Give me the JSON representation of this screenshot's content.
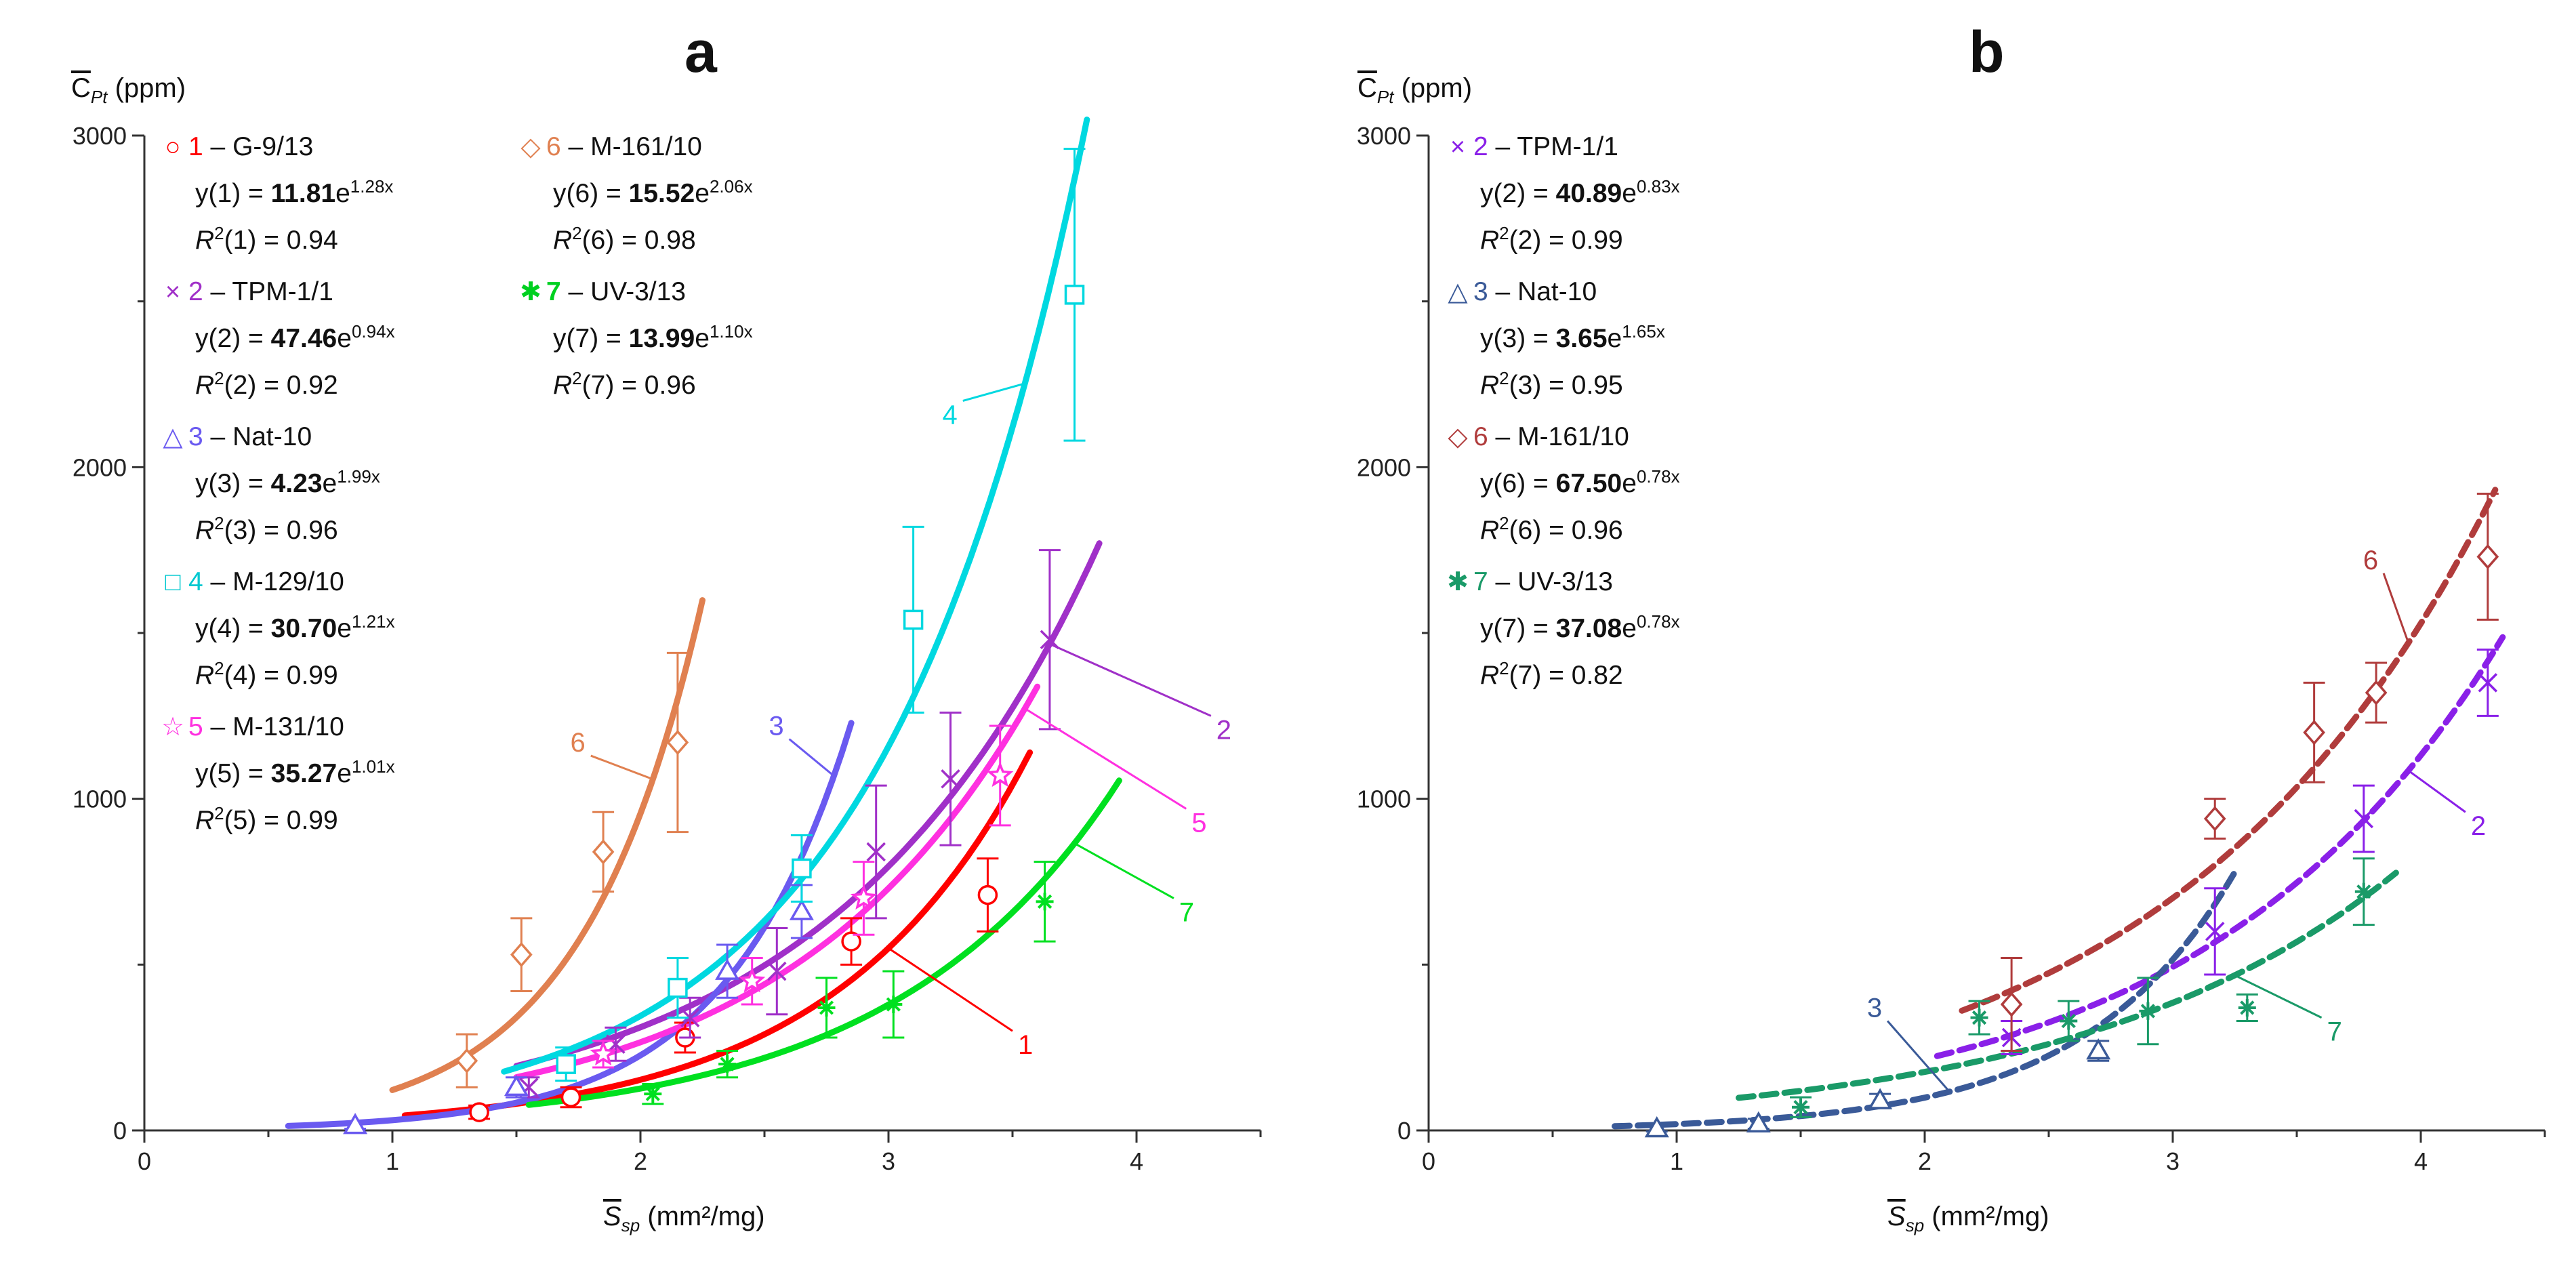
{
  "chart_data": [
    {
      "panel": "a",
      "type": "scatter",
      "title": "a",
      "ylabel": {
        "symbol": "C",
        "sub": "Pt",
        "unit": "(ppm)"
      },
      "xlabel": {
        "symbol": "S",
        "sub": "sp",
        "unit": "(mm²/mg)"
      },
      "xlim": [
        0,
        4.5
      ],
      "ylim": [
        0,
        3000
      ],
      "xticks": [
        "0",
        "1",
        "2",
        "3",
        "4"
      ],
      "yticks": [
        "0",
        "1000",
        "2000",
        "3000"
      ],
      "series": [
        {
          "id": "1",
          "label": "G-9/13",
          "color": "#ff0000",
          "marker": "circle",
          "coef": "11.81",
          "exp": "1.28",
          "a": 11.81,
          "b": 1.28,
          "r2": "0.94",
          "xrange": [
            1.05,
            3.57
          ],
          "points": [
            [
              1.35,
              55,
              20
            ],
            [
              1.72,
              100,
              30
            ],
            [
              2.18,
              280,
              45
            ],
            [
              2.85,
              570,
              70
            ],
            [
              3.4,
              710,
              110
            ]
          ]
        },
        {
          "id": "2",
          "label": "TPM-1/1",
          "color": "#a030c8",
          "marker": "cross",
          "coef": "47.46",
          "exp": "0.94",
          "a": 47.46,
          "b": 0.94,
          "r2": "0.92",
          "xrange": [
            1.5,
            3.85
          ],
          "points": [
            [
              1.55,
              130,
              30
            ],
            [
              1.9,
              260,
              50
            ],
            [
              2.2,
              340,
              60
            ],
            [
              2.55,
              480,
              130
            ],
            [
              2.95,
              840,
              200
            ],
            [
              3.25,
              1060,
              200
            ],
            [
              3.65,
              1480,
              270
            ]
          ]
        },
        {
          "id": "3",
          "label": "Nat-10",
          "color": "#6a5af0",
          "marker": "triangle",
          "coef": "4.23",
          "exp": "1.99",
          "a": 4.23,
          "b": 1.99,
          "r2": "0.96",
          "xrange": [
            0.58,
            2.85
          ],
          "points": [
            [
              0.85,
              15,
              10
            ],
            [
              1.5,
              130,
              30
            ],
            [
              2.35,
              480,
              80
            ],
            [
              2.65,
              660,
              80
            ]
          ]
        },
        {
          "id": "4",
          "label": "M-129/10",
          "color": "#00d8e0",
          "marker": "square",
          "coef": "30.70",
          "exp": "1.21",
          "a": 30.7,
          "b": 1.21,
          "r2": "0.99",
          "xrange": [
            1.45,
            3.8
          ],
          "points": [
            [
              1.7,
              200,
              50
            ],
            [
              2.15,
              430,
              90
            ],
            [
              2.65,
              790,
              100
            ],
            [
              3.1,
              1540,
              280
            ],
            [
              3.75,
              2520,
              440
            ]
          ]
        },
        {
          "id": "5",
          "label": "M-131/10",
          "color": "#ff30e0",
          "marker": "star",
          "coef": "35.27",
          "exp": "1.01",
          "a": 35.27,
          "b": 1.01,
          "r2": "0.99",
          "xrange": [
            1.5,
            3.6
          ],
          "points": [
            [
              1.85,
              230,
              40
            ],
            [
              2.45,
              450,
              70
            ],
            [
              2.9,
              700,
              110
            ],
            [
              3.45,
              1070,
              150
            ]
          ]
        },
        {
          "id": "6",
          "label": "M-161/10",
          "color": "#e08050",
          "marker": "diamond",
          "coef": "15.52",
          "exp": "2.06",
          "a": 15.52,
          "b": 2.06,
          "r2": "0.98",
          "xrange": [
            1.0,
            2.25
          ],
          "points": [
            [
              1.3,
              210,
              80
            ],
            [
              1.52,
              530,
              110
            ],
            [
              1.85,
              840,
              120
            ],
            [
              2.15,
              1170,
              270
            ]
          ]
        },
        {
          "id": "7",
          "label": "UV-3/13",
          "color": "#00e020",
          "marker": "asterisk",
          "coef": "13.99",
          "exp": "1.10",
          "a": 13.99,
          "b": 1.1,
          "r2": "0.96",
          "xrange": [
            1.55,
            3.93
          ],
          "points": [
            [
              2.05,
              110,
              30
            ],
            [
              2.35,
              200,
              40
            ],
            [
              2.75,
              370,
              90
            ],
            [
              3.02,
              380,
              100
            ],
            [
              3.63,
              690,
              120
            ]
          ]
        }
      ],
      "curve_labels": [
        {
          "text": "1",
          "series": "1",
          "x": 3.0,
          "lx": 3.5,
          "ly": 300
        },
        {
          "text": "2",
          "series": "2",
          "x": 3.65,
          "lx": 4.3,
          "ly": 1250
        },
        {
          "text": "3",
          "series": "3",
          "x": 2.78,
          "lx": 2.6,
          "ly": 1180
        },
        {
          "text": "4",
          "series": "4",
          "x": 3.55,
          "lx": 3.3,
          "ly": 2200
        },
        {
          "text": "5",
          "series": "5",
          "x": 3.55,
          "lx": 4.2,
          "ly": 970
        },
        {
          "text": "6",
          "series": "6",
          "x": 2.05,
          "lx": 1.8,
          "ly": 1130
        },
        {
          "text": "7",
          "series": "7",
          "x": 3.75,
          "lx": 4.15,
          "ly": 700
        }
      ]
    },
    {
      "panel": "b",
      "type": "scatter",
      "title": "b",
      "ylabel": {
        "symbol": "C",
        "sub": "Pt",
        "unit": "(ppm)"
      },
      "xlabel": {
        "symbol": "S",
        "sub": "sp",
        "unit": "(mm²/mg)"
      },
      "xlim": [
        0,
        4.5
      ],
      "ylim": [
        0,
        3000
      ],
      "xticks": [
        "0",
        "1",
        "2",
        "3",
        "4"
      ],
      "yticks": [
        "0",
        "1000",
        "2000",
        "3000"
      ],
      "series": [
        {
          "id": "2",
          "label": "TPM-1/1",
          "color": "#8a20e8",
          "marker": "cross",
          "coef": "40.89",
          "exp": "0.83",
          "a": 40.89,
          "b": 0.83,
          "r2": "0.99",
          "xrange": [
            2.05,
            4.33
          ],
          "points": [
            [
              2.35,
              280,
              50
            ],
            [
              3.17,
              600,
              130
            ],
            [
              3.77,
              940,
              100
            ],
            [
              4.27,
              1350,
              100
            ]
          ]
        },
        {
          "id": "3",
          "label": "Nat-10",
          "color": "#3a5a98",
          "marker": "triangle",
          "coef": "3.65",
          "exp": "1.65",
          "a": 3.65,
          "b": 1.65,
          "r2": "0.95",
          "xrange": [
            0.75,
            3.25
          ],
          "points": [
            [
              0.92,
              5,
              8
            ],
            [
              1.33,
              20,
              15
            ],
            [
              1.82,
              90,
              20
            ],
            [
              2.7,
              240,
              30
            ]
          ]
        },
        {
          "id": "6",
          "label": "M-161/10",
          "color": "#b03c3c",
          "marker": "diamond",
          "coef": "67.50",
          "exp": "0.78",
          "a": 67.5,
          "b": 0.78,
          "r2": "0.96",
          "xrange": [
            2.15,
            4.3
          ],
          "points": [
            [
              2.35,
              380,
              140
            ],
            [
              3.17,
              940,
              60
            ],
            [
              3.57,
              1200,
              150
            ],
            [
              3.82,
              1320,
              90
            ],
            [
              4.27,
              1730,
              190
            ]
          ]
        },
        {
          "id": "7",
          "label": "UV-3/13",
          "color": "#1a9a68",
          "marker": "asterisk",
          "coef": "37.08",
          "exp": "0.78",
          "a": 37.08,
          "b": 0.78,
          "r2": "0.82",
          "xrange": [
            1.25,
            3.9
          ],
          "points": [
            [
              1.5,
              70,
              30
            ],
            [
              2.22,
              340,
              50
            ],
            [
              2.58,
              330,
              60
            ],
            [
              2.9,
              360,
              100
            ],
            [
              3.3,
              370,
              40
            ],
            [
              3.77,
              720,
              100
            ]
          ]
        }
      ],
      "curve_labels": [
        {
          "text": "2",
          "series": "2",
          "x": 3.95,
          "lx": 4.18,
          "ly": 960
        },
        {
          "text": "3",
          "series": "3",
          "x": 2.1,
          "lx": 1.85,
          "ly": 330
        },
        {
          "text": "6",
          "series": "6",
          "x": 3.95,
          "lx": 3.85,
          "ly": 1680
        },
        {
          "text": "7",
          "series": "7",
          "x": 3.25,
          "lx": 3.6,
          "ly": 340
        }
      ]
    }
  ]
}
